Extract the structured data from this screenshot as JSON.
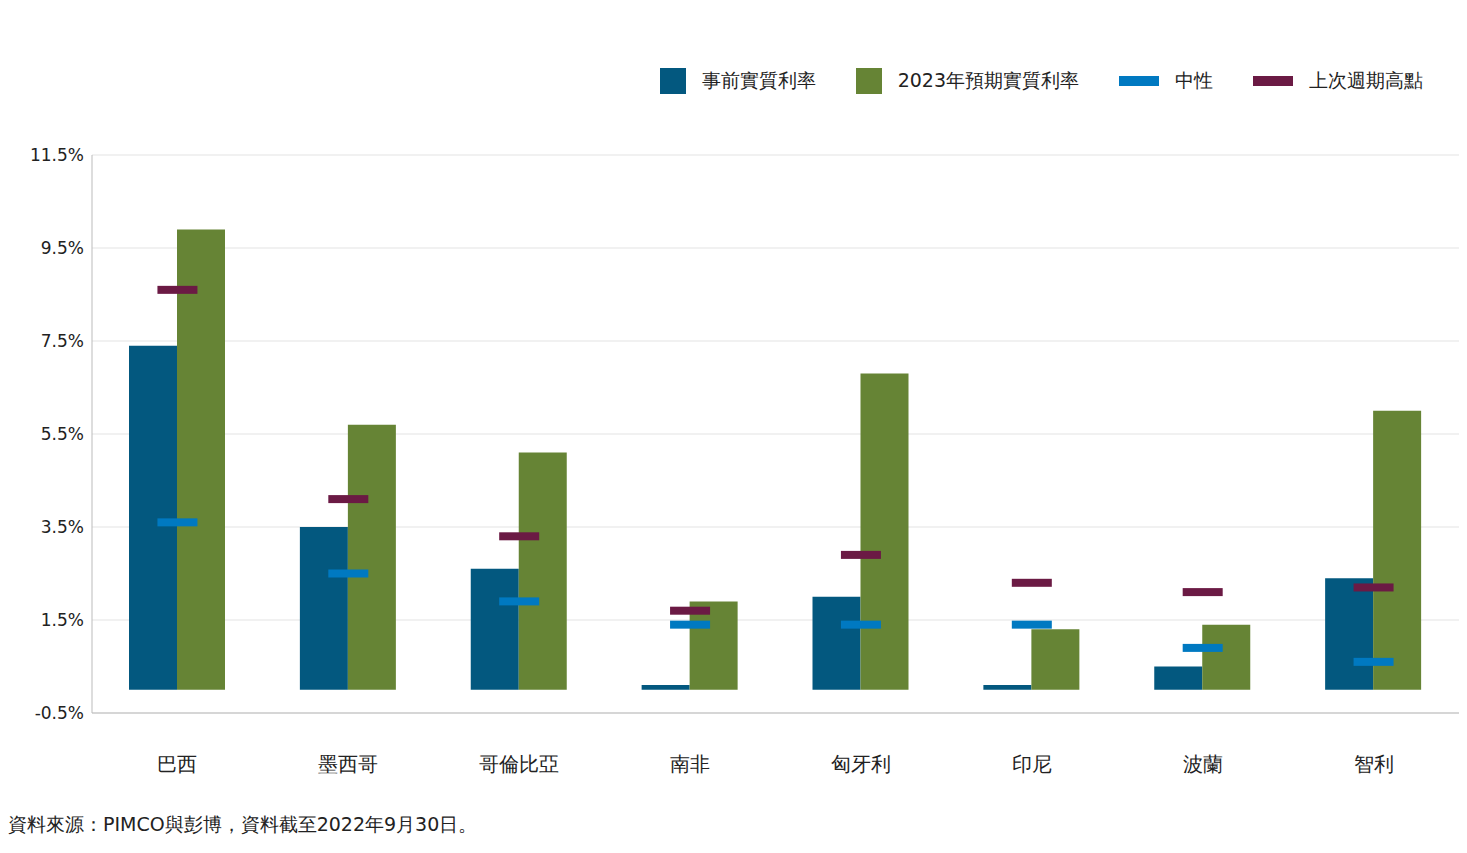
{
  "chart_data": {
    "type": "bar",
    "source": "資料來源：PIMCO與彭博，資料截至2022年9月30日。",
    "categories": [
      "巴西",
      "墨西哥",
      "哥倫比亞",
      "南非",
      "匈牙利",
      "印尼",
      "波蘭",
      "智利"
    ],
    "series": [
      {
        "name": "事前實質利率",
        "color": "#03587f",
        "type": "bar",
        "values": [
          7.4,
          3.5,
          2.6,
          0.1,
          2.0,
          0.1,
          0.5,
          2.4
        ]
      },
      {
        "name": "2023年預期實質利率",
        "color": "#668435",
        "type": "bar",
        "values": [
          9.9,
          5.7,
          5.1,
          1.9,
          6.8,
          1.3,
          1.4,
          6.0
        ]
      },
      {
        "name": "中性",
        "color": "#0079c1",
        "type": "marker",
        "marker": "dash",
        "values": [
          3.6,
          2.5,
          1.9,
          1.4,
          1.4,
          1.4,
          0.9,
          0.6
        ]
      },
      {
        "name": "上次週期高點",
        "color": "#6b1a44",
        "type": "marker",
        "marker": "dash",
        "values": [
          8.6,
          4.1,
          3.3,
          1.7,
          2.9,
          2.3,
          2.1,
          2.2
        ]
      }
    ],
    "ylim": [
      -0.5,
      11.5
    ],
    "yticks": [
      {
        "value": -0.5,
        "label": "-0.5%"
      },
      {
        "value": 1.5,
        "label": "1.5%"
      },
      {
        "value": 3.5,
        "label": "3.5%"
      },
      {
        "value": 5.5,
        "label": "5.5%"
      },
      {
        "value": 7.5,
        "label": "7.5%"
      },
      {
        "value": 9.5,
        "label": "9.5%"
      },
      {
        "value": 11.5,
        "label": "11.5%"
      }
    ],
    "grid": true,
    "legend": "top-right"
  }
}
